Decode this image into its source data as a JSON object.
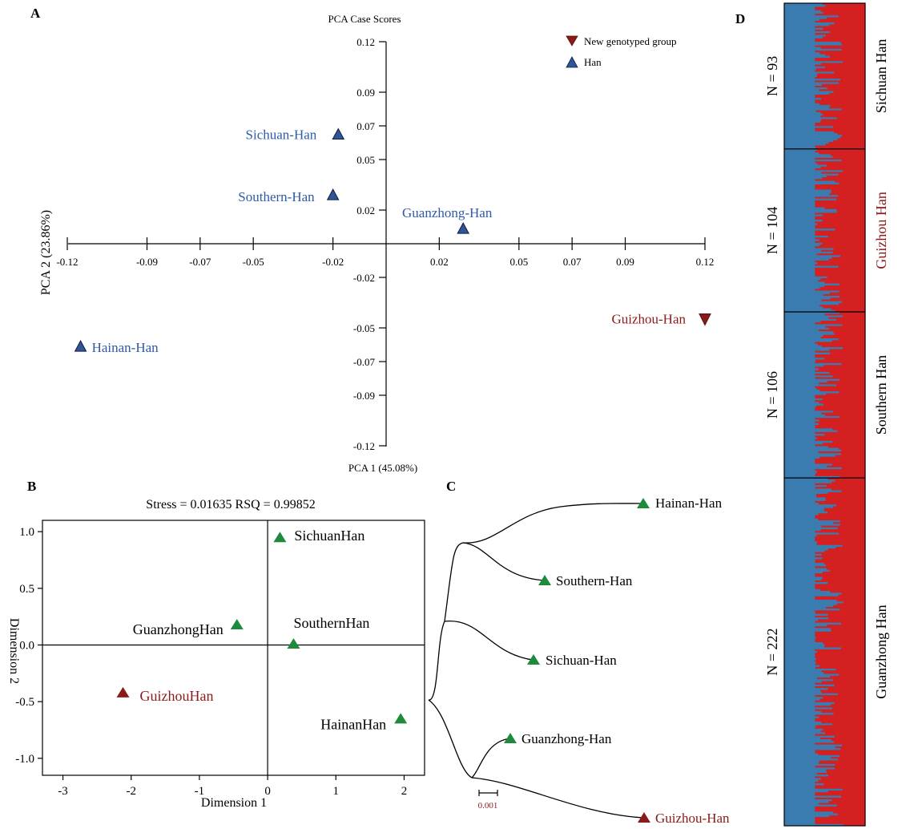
{
  "colors": {
    "han_blue": "#2f5597",
    "blue_text": "#2e5aa8",
    "dark_red": "#8b1a1a",
    "green": "#1e8a3c",
    "structure_blue": "#3a7bb0",
    "structure_red": "#d42020"
  },
  "chart_data": [
    {
      "panel": "A",
      "type": "scatter",
      "title": "PCA Case Scores",
      "xlabel": "PCA 1 (45.08%)",
      "ylabel": "PCA 2 (23.86%)",
      "xlim": [
        -0.12,
        0.12
      ],
      "ylim": [
        -0.12,
        0.12
      ],
      "x_ticks": [
        -0.12,
        -0.09,
        -0.07,
        -0.05,
        -0.02,
        0.02,
        0.05,
        0.07,
        0.09,
        0.12
      ],
      "x_tick_labels": [
        "-0.12",
        "-0.09",
        "-0.07",
        "-0.05",
        "-0.02",
        "0.02",
        "0.05",
        "0.07",
        "0.09",
        "0.12"
      ],
      "y_ticks": [
        0.12,
        0.09,
        0.07,
        0.05,
        0.02,
        -0.02,
        -0.05,
        -0.07,
        -0.09,
        -0.12
      ],
      "y_tick_labels": [
        "0.12",
        "0.09",
        "0.07",
        "0.05",
        "0.02",
        "-0.02",
        "-0.05",
        "-0.07",
        "-0.09",
        "-0.12"
      ],
      "legend": {
        "placement": "top-right",
        "entries": [
          {
            "label": "New genotyped group",
            "marker": "triangle-down"
          },
          {
            "label": "Han",
            "marker": "triangle-up"
          }
        ]
      },
      "points": [
        {
          "label": "Sichuan-Han",
          "x": -0.018,
          "y": 0.065,
          "group": "Han"
        },
        {
          "label": "Southern-Han",
          "x": -0.02,
          "y": 0.029,
          "group": "Han"
        },
        {
          "label": "Guanzhong-Han",
          "x": 0.029,
          "y": 0.009,
          "group": "Han"
        },
        {
          "label": "Hainan-Han",
          "x": -0.115,
          "y": -0.061,
          "group": "Han"
        },
        {
          "label": "Guizhou-Han",
          "x": 0.12,
          "y": -0.045,
          "group": "New genotyped group"
        }
      ]
    },
    {
      "panel": "B",
      "type": "scatter",
      "title": "Stress = 0.01635   RSQ = 0.99852",
      "xlabel": "Dimension 1",
      "ylabel": "Dimension 2",
      "xlim": [
        -3.3,
        2.3
      ],
      "ylim": [
        -1.15,
        1.1
      ],
      "x_ticks": [
        -3,
        -2,
        -1,
        0,
        1,
        2
      ],
      "x_tick_labels": [
        "-3",
        "-2",
        "-1",
        "0",
        "1",
        "2"
      ],
      "y_ticks": [
        1.0,
        0.5,
        0.0,
        -0.5,
        -1.0
      ],
      "y_tick_labels": [
        "1.0",
        "0.5",
        "0.0",
        "-0.5",
        "-1.0"
      ],
      "points": [
        {
          "label": "SichuanHan",
          "x": 0.18,
          "y": 0.95
        },
        {
          "label": "GuanzhongHan",
          "x": -0.45,
          "y": 0.18
        },
        {
          "label": "SouthernHan",
          "x": 0.38,
          "y": 0.01
        },
        {
          "label": "GuizhouHan",
          "x": -2.12,
          "y": -0.42
        },
        {
          "label": "HainanHan",
          "x": 1.95,
          "y": -0.65
        }
      ]
    },
    {
      "panel": "C",
      "type": "tree",
      "leaves": [
        "Hainan-Han",
        "Southern-Han",
        "Sichuan-Han",
        "Guanzhong-Han",
        "Guizhou-Han"
      ],
      "scale_label": "0.001"
    },
    {
      "panel": "D",
      "type": "bar",
      "groups": [
        {
          "name": "Sichuan Han",
          "n_label": "N = 93",
          "n": 93
        },
        {
          "name": "Guizhou Han",
          "n_label": "N = 104",
          "n": 104
        },
        {
          "name": "Southern Han",
          "n_label": "N = 106",
          "n": 106
        },
        {
          "name": "Guanzhong Han",
          "n_label": "N = 222",
          "n": 222
        }
      ]
    }
  ],
  "panels": {
    "a": "A",
    "b": "B",
    "c": "C",
    "d": "D"
  }
}
